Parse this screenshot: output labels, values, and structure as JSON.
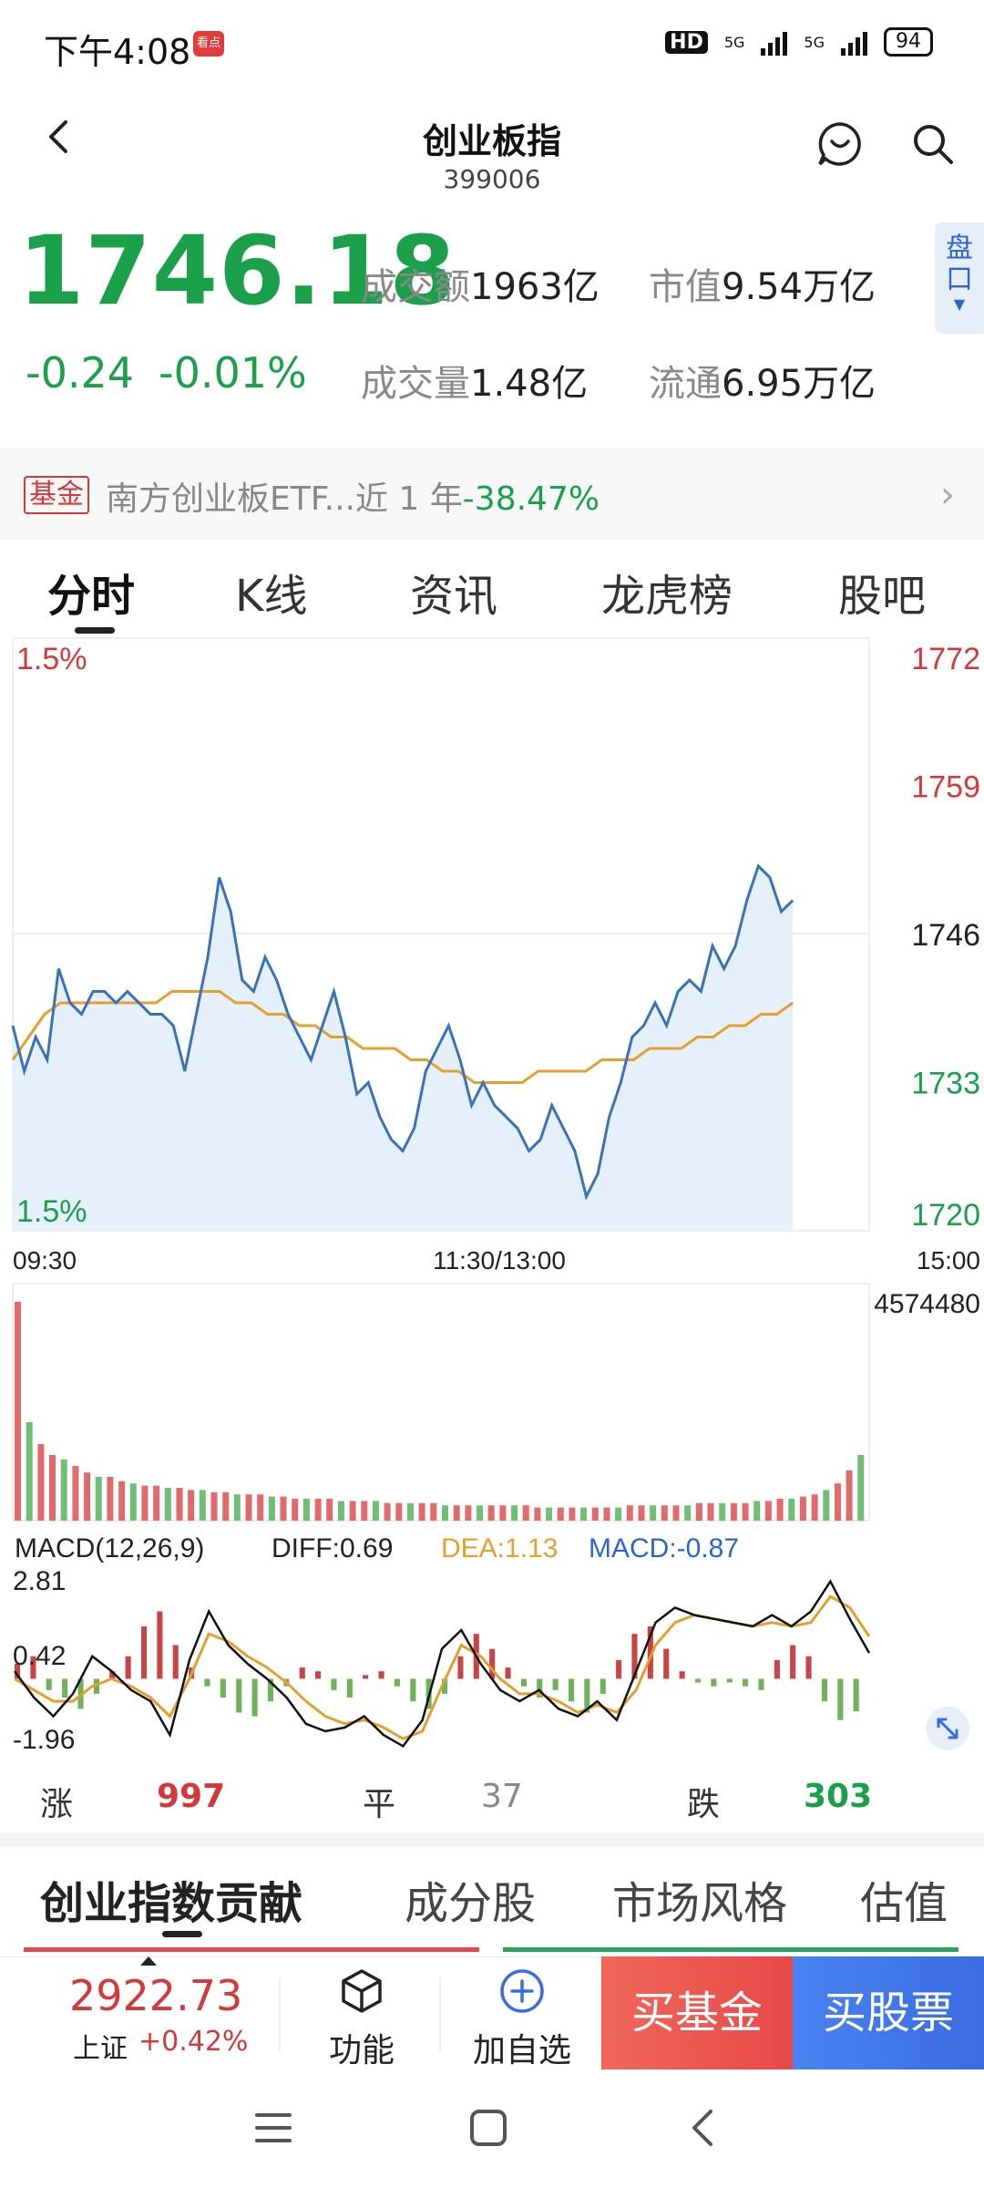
{
  "status_bar": {
    "time": "下午4:08",
    "app_badge": "看点",
    "hd": "HD",
    "net1": "5G",
    "net2": "5G",
    "battery": "94"
  },
  "header": {
    "title": "创业板指",
    "code": "399006"
  },
  "quote": {
    "price": "1746.18",
    "change": "-0.24",
    "change_pct": "-0.01%",
    "stats": [
      {
        "label": "成交额",
        "value": "1963亿"
      },
      {
        "label": "市值",
        "value": "9.54万亿"
      },
      {
        "label": "成交量",
        "value": "1.48亿"
      },
      {
        "label": "流通",
        "value": "6.95万亿"
      }
    ],
    "pankou_label": "盘口",
    "price_color": "#19a049"
  },
  "fund_banner": {
    "tag": "基金",
    "text": "南方创业板ETF...近 1 年",
    "pct": "-38.47%"
  },
  "tabs": [
    "分时",
    "K线",
    "资讯",
    "龙虎榜",
    "股吧"
  ],
  "chart_data": {
    "type": "line",
    "title": "",
    "price_axis": {
      "ticks": [
        "1772",
        "1759",
        "1746",
        "1733",
        "1720"
      ],
      "tick_colors": [
        "#d03a3a",
        "#d03a3a",
        "#222222",
        "#19a049",
        "#19a049"
      ],
      "ylim": [
        1720,
        1772
      ]
    },
    "pct_labels": {
      "top": "1.5%",
      "bottom": "1.5%"
    },
    "time_ticks": [
      "09:30",
      "11:30/13:00",
      "15:00"
    ],
    "series": [
      {
        "kind": "price",
        "color": "#3a72b8",
        "values": [
          1738,
          1734,
          1737,
          1735,
          1743,
          1740,
          1739,
          1741,
          1741,
          1740,
          1741,
          1740,
          1739,
          1739,
          1738,
          1734,
          1739,
          1744,
          1751,
          1748,
          1742,
          1741,
          1744,
          1742,
          1739,
          1737,
          1735,
          1738,
          1741,
          1737,
          1732,
          1733,
          1730,
          1728,
          1727,
          1729,
          1734,
          1736,
          1738,
          1735,
          1731,
          1733,
          1731,
          1730,
          1729,
          1727,
          1728,
          1731,
          1729,
          1727,
          1723,
          1725,
          1730,
          1733,
          1737,
          1738,
          1740,
          1738,
          1741,
          1742,
          1741,
          1745,
          1743,
          1745,
          1749,
          1752,
          1751,
          1748,
          1749
        ],
        "x_end": 0.905
      },
      {
        "kind": "average",
        "color": "#e2a030",
        "values": [
          1735,
          1737,
          1739,
          1740,
          1740,
          1740,
          1740,
          1740,
          1740,
          1740,
          1741,
          1741,
          1741,
          1741,
          1740,
          1740,
          1739,
          1739,
          1738,
          1738,
          1737,
          1737,
          1736,
          1736,
          1736,
          1735,
          1735,
          1734,
          1734,
          1733,
          1733,
          1733,
          1733,
          1734,
          1734,
          1734,
          1734,
          1735,
          1735,
          1735,
          1736,
          1736,
          1736,
          1737,
          1737,
          1738,
          1738,
          1739,
          1739,
          1740
        ],
        "x_end": 0.905
      }
    ],
    "volume": {
      "max_label": "4574480",
      "bars": [
        1.0,
        0.45,
        0.35,
        0.3,
        0.28,
        0.25,
        0.22,
        0.2,
        0.2,
        0.18,
        0.17,
        0.16,
        0.16,
        0.15,
        0.15,
        0.14,
        0.14,
        0.13,
        0.13,
        0.12,
        0.12,
        0.12,
        0.11,
        0.11,
        0.1,
        0.1,
        0.1,
        0.1,
        0.09,
        0.09,
        0.09,
        0.09,
        0.08,
        0.08,
        0.08,
        0.08,
        0.08,
        0.07,
        0.07,
        0.07,
        0.07,
        0.07,
        0.07,
        0.07,
        0.07,
        0.06,
        0.06,
        0.06,
        0.06,
        0.06,
        0.06,
        0.06,
        0.06,
        0.07,
        0.07,
        0.07,
        0.07,
        0.07,
        0.07,
        0.08,
        0.08,
        0.08,
        0.08,
        0.08,
        0.09,
        0.09,
        0.1,
        0.1,
        0.11,
        0.12,
        0.14,
        0.17,
        0.23,
        0.3
      ],
      "up_color": "#e36a6a",
      "down_color": "#6fbf74"
    },
    "macd": {
      "title": "MACD(12,26,9)",
      "diff": "DIFF:0.69",
      "dea": "DEA:1.13",
      "macd": "MACD:-0.87",
      "y_ticks": [
        "2.81",
        "0.42",
        "-1.96"
      ],
      "ylim": [
        -1.96,
        2.81
      ],
      "diff_color": "#111111",
      "dea_color": "#e2a030",
      "macd_color": "#2c66c8",
      "diff_values": [
        0.2,
        -0.5,
        -1.0,
        -0.4,
        0.6,
        0.2,
        -0.3,
        -0.6,
        -1.5,
        0.5,
        1.8,
        0.9,
        0.4,
        0.0,
        -0.5,
        -1.2,
        -1.4,
        -1.3,
        -1.0,
        -1.5,
        -1.8,
        -1.1,
        0.8,
        1.3,
        0.4,
        -0.3,
        -0.6,
        -0.3,
        -0.8,
        -1.0,
        -0.6,
        -1.1,
        0.2,
        1.5,
        1.9,
        1.7,
        1.6,
        1.5,
        1.4,
        1.7,
        1.4,
        1.8,
        2.6,
        1.6,
        0.69
      ],
      "dea_values": [
        0.0,
        -0.3,
        -0.6,
        -0.6,
        -0.2,
        0.0,
        -0.2,
        -0.5,
        -1.0,
        0.0,
        1.2,
        1.0,
        0.6,
        0.3,
        -0.1,
        -0.6,
        -1.0,
        -1.2,
        -1.1,
        -1.3,
        -1.6,
        -1.4,
        -0.2,
        0.9,
        0.6,
        0.0,
        -0.4,
        -0.4,
        -0.6,
        -0.9,
        -0.7,
        -0.9,
        -0.3,
        0.9,
        1.5,
        1.7,
        1.6,
        1.5,
        1.4,
        1.5,
        1.4,
        1.5,
        2.2,
        1.9,
        1.13
      ],
      "hist_values": [
        0.4,
        0.6,
        -0.3,
        -0.5,
        -0.8,
        -0.4,
        0.2,
        0.6,
        1.4,
        1.8,
        0.9,
        0.3,
        -0.2,
        -0.5,
        -0.9,
        -1.0,
        -0.6,
        -0.2,
        0.3,
        0.2,
        -0.3,
        -0.5,
        0.1,
        0.2,
        -0.2,
        -0.6,
        -0.8,
        -0.4,
        0.6,
        1.2,
        0.8,
        0.3,
        -0.2,
        -0.5,
        -0.3,
        -0.6,
        -0.9,
        -0.4,
        0.5,
        1.2,
        1.4,
        0.8,
        0.2,
        -0.1,
        -0.2,
        -0.1,
        -0.2,
        -0.3,
        0.5,
        0.9,
        0.6,
        -0.6,
        -1.1,
        -0.87
      ],
      "up_color": "#c84545",
      "down_color": "#6fb25a"
    }
  },
  "counts": {
    "up_label": "涨",
    "up_value": "997",
    "flat_label": "平",
    "flat_value": "37",
    "down_label": "跌",
    "down_value": "303"
  },
  "lower_tabs": [
    "创业指数贡献",
    "成分股",
    "市场风格",
    "估值"
  ],
  "toolbar": {
    "sh_price": "2922.73",
    "sh_label": "上证",
    "sh_pct": "+0.42%",
    "func_label": "功能",
    "watch_label": "加自选",
    "buy_fund": "买基金",
    "buy_stock": "买股票"
  }
}
